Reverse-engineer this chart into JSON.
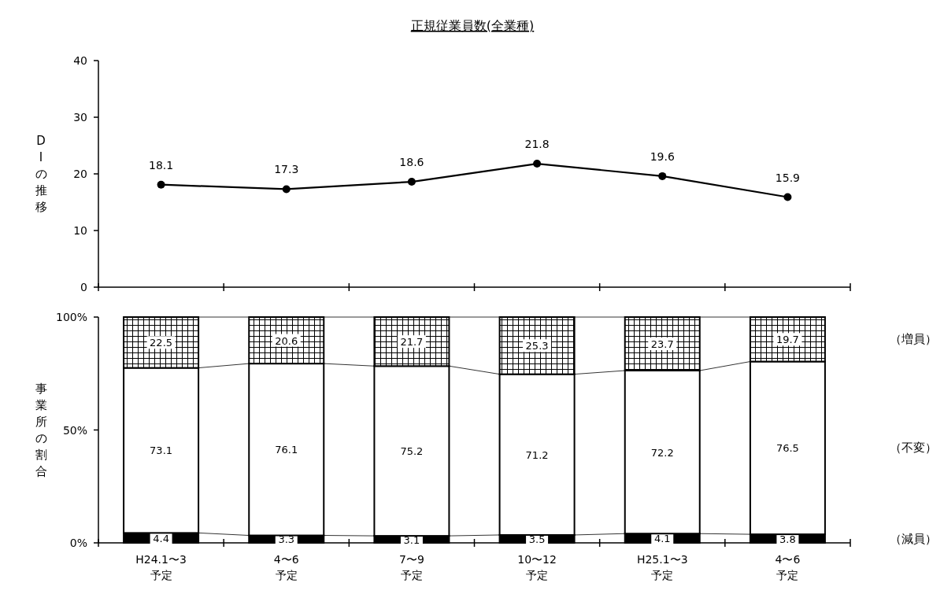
{
  "chart_data": [
    {
      "type": "line",
      "title": "正規従業員数(全業種)",
      "ylabel": "DIの推移",
      "categories": [
        null,
        null,
        null,
        null,
        null,
        null
      ],
      "tick_labels": "y",
      "ylim": [
        0,
        40
      ],
      "yticks": [
        0,
        10,
        20,
        30,
        40
      ],
      "marker": "circle",
      "data_labels": true,
      "series": [
        {
          "color": "#000000",
          "values": [
            18.1,
            17.3,
            18.6,
            21.8,
            19.6,
            15.9
          ]
        }
      ]
    },
    {
      "type": "bar",
      "stacked": true,
      "ylabel": "事業所の割合",
      "categories": [
        "H24.1〜3\n予定",
        "4〜6\n予定",
        "7〜9\n予定",
        "10〜12\n予定",
        "H25.1〜3\n予定",
        "4〜6\n予定"
      ],
      "ylim": [
        0,
        100
      ],
      "yticks": [
        {
          "value": 0,
          "label": "0%"
        },
        {
          "value": 50,
          "label": "50%"
        },
        {
          "value": 100,
          "label": "100%"
        }
      ],
      "data_labels": true,
      "legend": "right",
      "series": [
        {
          "name": "（減員）",
          "color": "#000000",
          "values": [
            4.4,
            3.3,
            3.1,
            3.5,
            4.1,
            3.8
          ]
        },
        {
          "name": "（不変）",
          "color": "#ffffff",
          "values": [
            73.1,
            76.1,
            75.2,
            71.2,
            72.2,
            76.5
          ]
        },
        {
          "name": "（増員）",
          "color": "#000000",
          "values": [
            22.5,
            20.6,
            21.7,
            25.3,
            23.7,
            19.7
          ]
        }
      ]
    }
  ]
}
